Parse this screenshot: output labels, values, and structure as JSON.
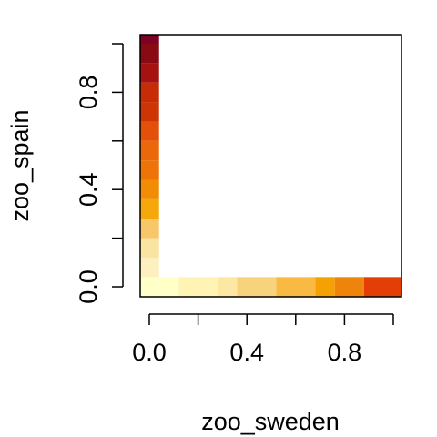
{
  "chart_data": {
    "type": "heatmap",
    "title": "",
    "xlabel": "zoo_sweden",
    "ylabel": "zoo_spain",
    "xlim": [
      0,
      1
    ],
    "ylim": [
      0,
      1
    ],
    "x_ticks": [
      "0.0",
      "0.4",
      "0.8"
    ],
    "y_ticks": [
      "0.0",
      "0.4",
      "0.8"
    ],
    "x_tick_values": [
      0.0,
      0.2,
      0.4,
      0.6,
      0.8,
      1.0
    ],
    "y_tick_values": [
      0.0,
      0.2,
      0.4,
      0.6,
      0.8,
      1.0
    ],
    "row_cells": {
      "y": 0.0,
      "bins": [
        {
          "x0": -0.04,
          "x1": 0.04,
          "color": "#FFFFC8"
        },
        {
          "x0": 0.04,
          "x1": 0.12,
          "color": "#FFFFC8"
        },
        {
          "x0": 0.12,
          "x1": 0.28,
          "color": "#FFF4B4"
        },
        {
          "x0": 0.28,
          "x1": 0.36,
          "color": "#FCE8A2"
        },
        {
          "x0": 0.36,
          "x1": 0.52,
          "color": "#F7D37E"
        },
        {
          "x0": 0.52,
          "x1": 0.68,
          "color": "#F9BA43"
        },
        {
          "x0": 0.68,
          "x1": 0.76,
          "color": "#F5A103"
        },
        {
          "x0": 0.76,
          "x1": 0.88,
          "color": "#EE840C"
        },
        {
          "x0": 0.88,
          "x1": 1.04,
          "color": "#E23E05"
        }
      ]
    },
    "column_cells": {
      "x": 0.0,
      "bins": [
        {
          "y0": 0.04,
          "y1": 0.12,
          "color": "#FEEFBE"
        },
        {
          "y0": 0.12,
          "y1": 0.2,
          "color": "#FAE4A2"
        },
        {
          "y0": 0.2,
          "y1": 0.28,
          "color": "#F8C769"
        },
        {
          "y0": 0.28,
          "y1": 0.36,
          "color": "#F6A709"
        },
        {
          "y0": 0.36,
          "y1": 0.44,
          "color": "#F18C04"
        },
        {
          "y0": 0.44,
          "y1": 0.52,
          "color": "#EF7408"
        },
        {
          "y0": 0.52,
          "y1": 0.6,
          "color": "#EA680A"
        },
        {
          "y0": 0.6,
          "y1": 0.68,
          "color": "#E35007"
        },
        {
          "y0": 0.68,
          "y1": 0.76,
          "color": "#CD3505"
        },
        {
          "y0": 0.76,
          "y1": 0.84,
          "color": "#C62D06"
        },
        {
          "y0": 0.84,
          "y1": 0.92,
          "color": "#A5120F"
        },
        {
          "y0": 0.92,
          "y1": 1.0,
          "color": "#8A0A14"
        },
        {
          "y0": 1.0,
          "y1": 1.04,
          "color": "#7E0126"
        }
      ]
    }
  }
}
